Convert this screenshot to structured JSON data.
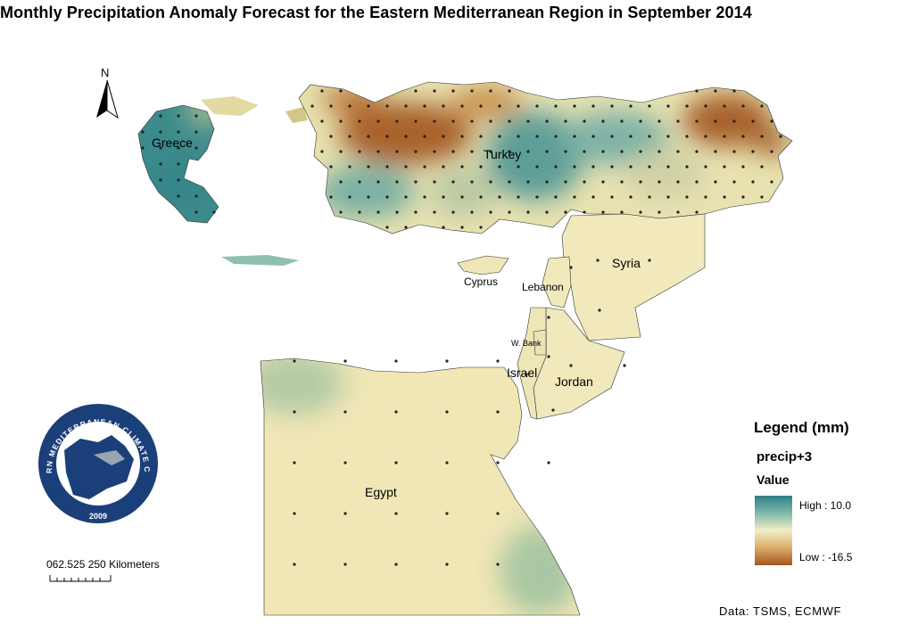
{
  "title": "Monthly Precipitation Anomaly Forecast for the Eastern Mediterranean Region in September 2014",
  "north_arrow": {
    "label": "N"
  },
  "countries": {
    "greece": "Greece",
    "turkey": "Turkey",
    "syria": "Syria",
    "cyprus": "Cyprus",
    "lebanon": "Lebanon",
    "west_bank": "W. Bank",
    "israel": "Israel",
    "jordan": "Jordan",
    "egypt": "Egypt"
  },
  "logo": {
    "text": "EASTERN MEDITERRANEAN CLIMATE CENTRE",
    "year": "2009"
  },
  "scale_bar": {
    "label": "062.525  250 Kilometers"
  },
  "legend": {
    "title": "Legend (mm)",
    "layer": "precip+3",
    "field": "Value",
    "high_label": "High : 10.0",
    "low_label": "Low : -16.5",
    "high_value": 10.0,
    "low_value": -16.5,
    "colors": {
      "high": "#2e7f86",
      "mid": "#f3eec4",
      "low": "#a3571f"
    }
  },
  "source": "Data:  TSMS, ECMWF"
}
